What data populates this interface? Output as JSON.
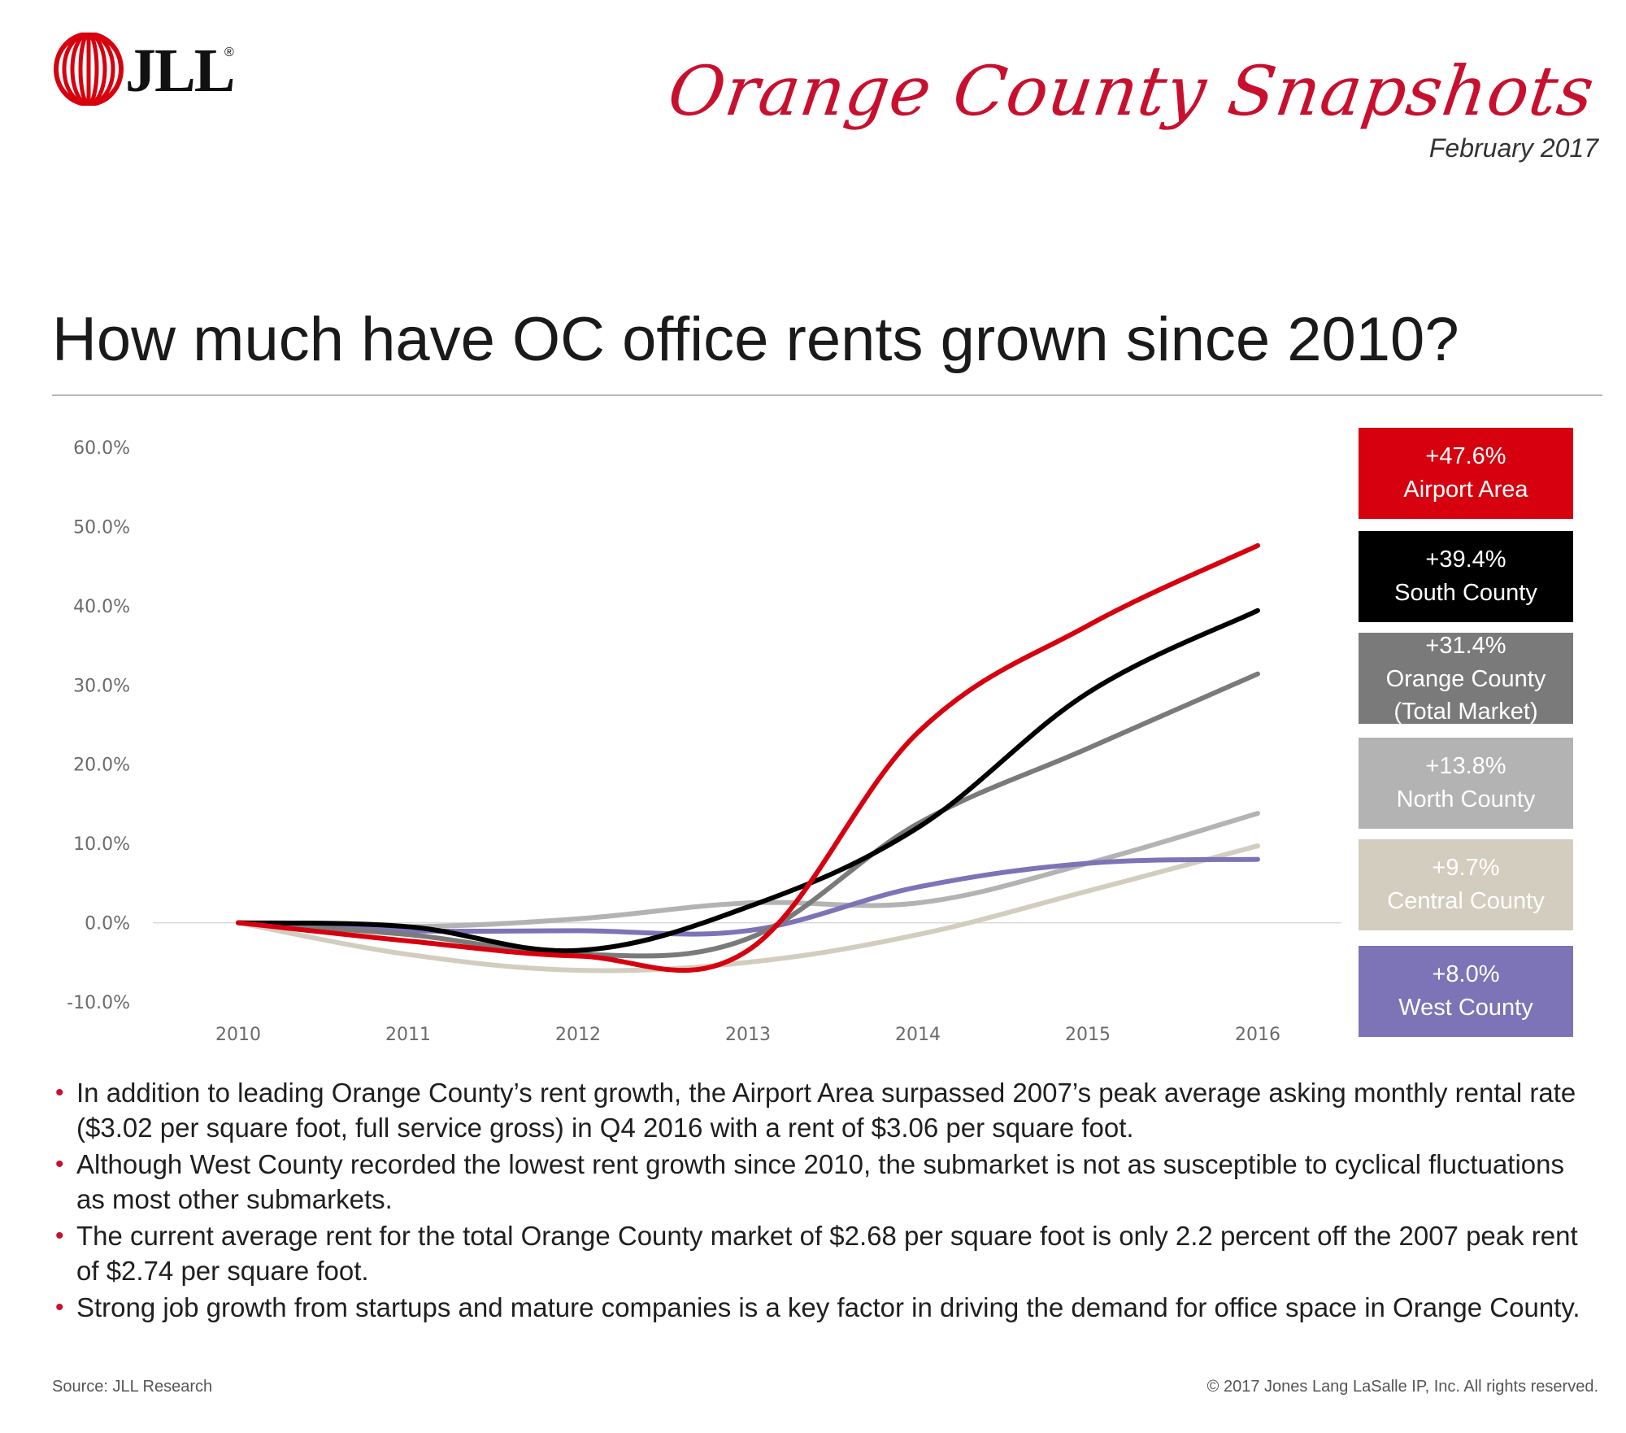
{
  "brand": {
    "logo_text": "JLL",
    "registered": "®",
    "title": "Orange County Snapshots",
    "date": "February 2017"
  },
  "headline": "How much have OC office rents grown since 2010?",
  "chart_data": {
    "type": "line",
    "x": [
      "2010",
      "2011",
      "2012",
      "2013",
      "2014",
      "2015",
      "2016"
    ],
    "ylim": [
      -10,
      60
    ],
    "yticks": [
      "60.0%",
      "50.0%",
      "40.0%",
      "30.0%",
      "20.0%",
      "10.0%",
      "0.0%",
      "-10.0%"
    ],
    "grid": "zero-line only",
    "legend_position": "right",
    "series": [
      {
        "name": "Airport Area",
        "color": "#d7000f",
        "values": [
          0.0,
          -2.3,
          -4.2,
          -3.5,
          24.0,
          37.5,
          47.6
        ]
      },
      {
        "name": "South County",
        "color": "#000000",
        "values": [
          0.0,
          -0.5,
          -3.5,
          2.0,
          12.0,
          29.0,
          39.4
        ]
      },
      {
        "name": "Orange County (Total Market)",
        "color": "#7a7a7a",
        "values": [
          0.0,
          -1.5,
          -4.0,
          -2.0,
          12.5,
          22.0,
          31.4
        ]
      },
      {
        "name": "North County",
        "color": "#b3b3b3",
        "values": [
          0.0,
          -0.5,
          0.5,
          2.5,
          2.5,
          7.5,
          13.8
        ]
      },
      {
        "name": "Central County",
        "color": "#d3cdbf",
        "values": [
          0.0,
          -4.0,
          -6.0,
          -5.0,
          -1.5,
          4.0,
          9.7
        ]
      },
      {
        "name": "West County",
        "color": "#7c74b7",
        "values": [
          0.0,
          -1.0,
          -1.0,
          -1.0,
          4.5,
          7.5,
          8.0
        ]
      }
    ],
    "legend": [
      {
        "value": "+47.6%",
        "label": "Airport Area",
        "color": "#d7000f",
        "text_color": "#ffffff"
      },
      {
        "value": "+39.4%",
        "label": "South County",
        "color": "#000000",
        "text_color": "#ffffff"
      },
      {
        "value": "+31.4%",
        "label": "Orange County (Total Market)",
        "color": "#7a7a7a",
        "text_color": "#ffffff"
      },
      {
        "value": "+13.8%",
        "label": "North County",
        "color": "#b3b3b3",
        "text_color": "#ffffff"
      },
      {
        "value": "+9.7%",
        "label": "Central County",
        "color": "#d3cdbf",
        "text_color": "#ffffff"
      },
      {
        "value": "+8.0%",
        "label": "West County",
        "color": "#7c74b7",
        "text_color": "#ffffff"
      }
    ]
  },
  "bullets": [
    "In addition to leading Orange County’s rent growth, the Airport Area surpassed 2007’s peak average asking monthly rental rate ($3.02 per square foot, full service gross) in Q4 2016 with a rent of $3.06 per square foot.",
    "Although West County recorded the lowest rent growth since 2010, the submarket is not as susceptible to cyclical fluctuations as most other submarkets.",
    "The current average rent for the total Orange County market of $2.68 per square foot is only 2.2 percent off the 2007 peak rent of $2.74 per square foot.",
    "Strong job growth from startups and mature companies is a key factor in driving the demand for office space in Orange County."
  ],
  "footer": {
    "source": "Source: JLL Research",
    "copyright": "© 2017 Jones Lang LaSalle IP, Inc. All rights reserved."
  }
}
